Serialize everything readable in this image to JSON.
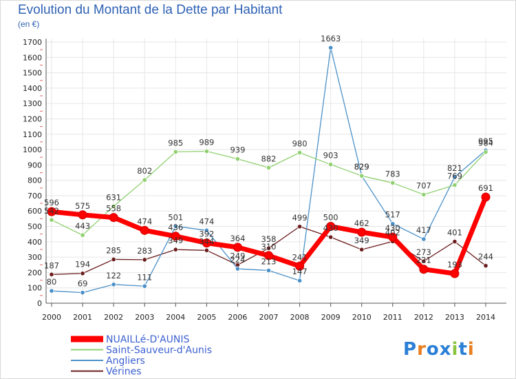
{
  "header": {
    "title": "Evolution du Montant de la Dette par Habitant",
    "unit": "(en €)"
  },
  "brand": {
    "name": "Proxiti"
  },
  "chart_data": {
    "type": "line",
    "title": "Evolution du Montant de la Dette par Habitant",
    "ylabel": "(en €)",
    "xlabel": "",
    "x": [
      "2000",
      "2001",
      "2002",
      "2003",
      "2004",
      "2005",
      "2006",
      "2007",
      "2008",
      "2009",
      "2010",
      "2011",
      "2012",
      "2013",
      "2014"
    ],
    "ylim": [
      0,
      1700
    ],
    "yticks": [
      0,
      100,
      200,
      300,
      400,
      500,
      600,
      700,
      800,
      900,
      1000,
      1100,
      1200,
      1300,
      1400,
      1500,
      1600,
      1700
    ],
    "grid": true,
    "legend_position": "bottom-left",
    "series": [
      {
        "name": "Vérines",
        "color": "#6b1c1c",
        "values": [
          187,
          194,
          285,
          283,
          349,
          344,
          249,
          358,
          499,
          430,
          349,
          402,
          273,
          401,
          244
        ]
      },
      {
        "name": "Angliers",
        "color": "#4a90c8",
        "values": [
          80,
          69,
          122,
          111,
          501,
          474,
          224,
          213,
          147,
          1663,
          829,
          517,
          417,
          821,
          995
        ]
      },
      {
        "name": "Saint-Sauveur-d'Aunis",
        "color": "#90d070",
        "values": [
          542,
          443,
          631,
          802,
          985,
          989,
          939,
          882,
          980,
          903,
          829,
          783,
          707,
          769,
          984
        ]
      },
      {
        "name": "NUAILLé-D'AUNIS",
        "color": "#ff0000",
        "values": [
          596,
          575,
          558,
          474,
          436,
          392,
          364,
          310,
          241,
          500,
          462,
          430,
          221,
          193,
          691
        ]
      }
    ]
  }
}
